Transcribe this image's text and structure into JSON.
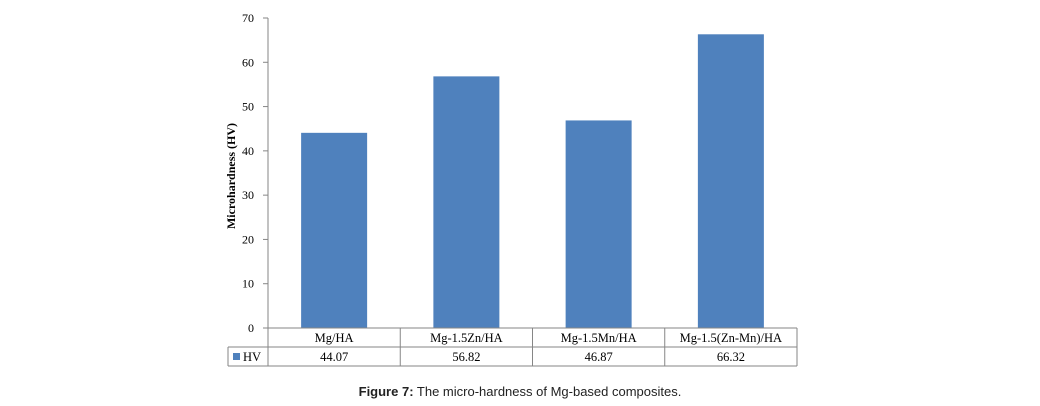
{
  "chart_data": {
    "type": "bar",
    "categories": [
      "Mg/HA",
      "Mg-1.5Zn/HA",
      "Mg-1.5Mn/HA",
      "Mg-1.5(Zn-Mn)/HA"
    ],
    "series": [
      {
        "name": "HV",
        "values": [
          44.07,
          56.82,
          46.87,
          66.32
        ],
        "value_labels": [
          "44.07",
          "56.82",
          "46.87",
          "66.32"
        ],
        "color": "#4f81bd"
      }
    ],
    "ylabel": "Microhardness  (HV)",
    "ylim": [
      0,
      70
    ],
    "yticks": [
      0,
      10,
      20,
      30,
      40,
      50,
      60,
      70
    ],
    "grid": false,
    "legend": "data-table"
  },
  "caption": {
    "label": "Figure 7:",
    "text": " The micro-hardness of Mg-based composites."
  }
}
